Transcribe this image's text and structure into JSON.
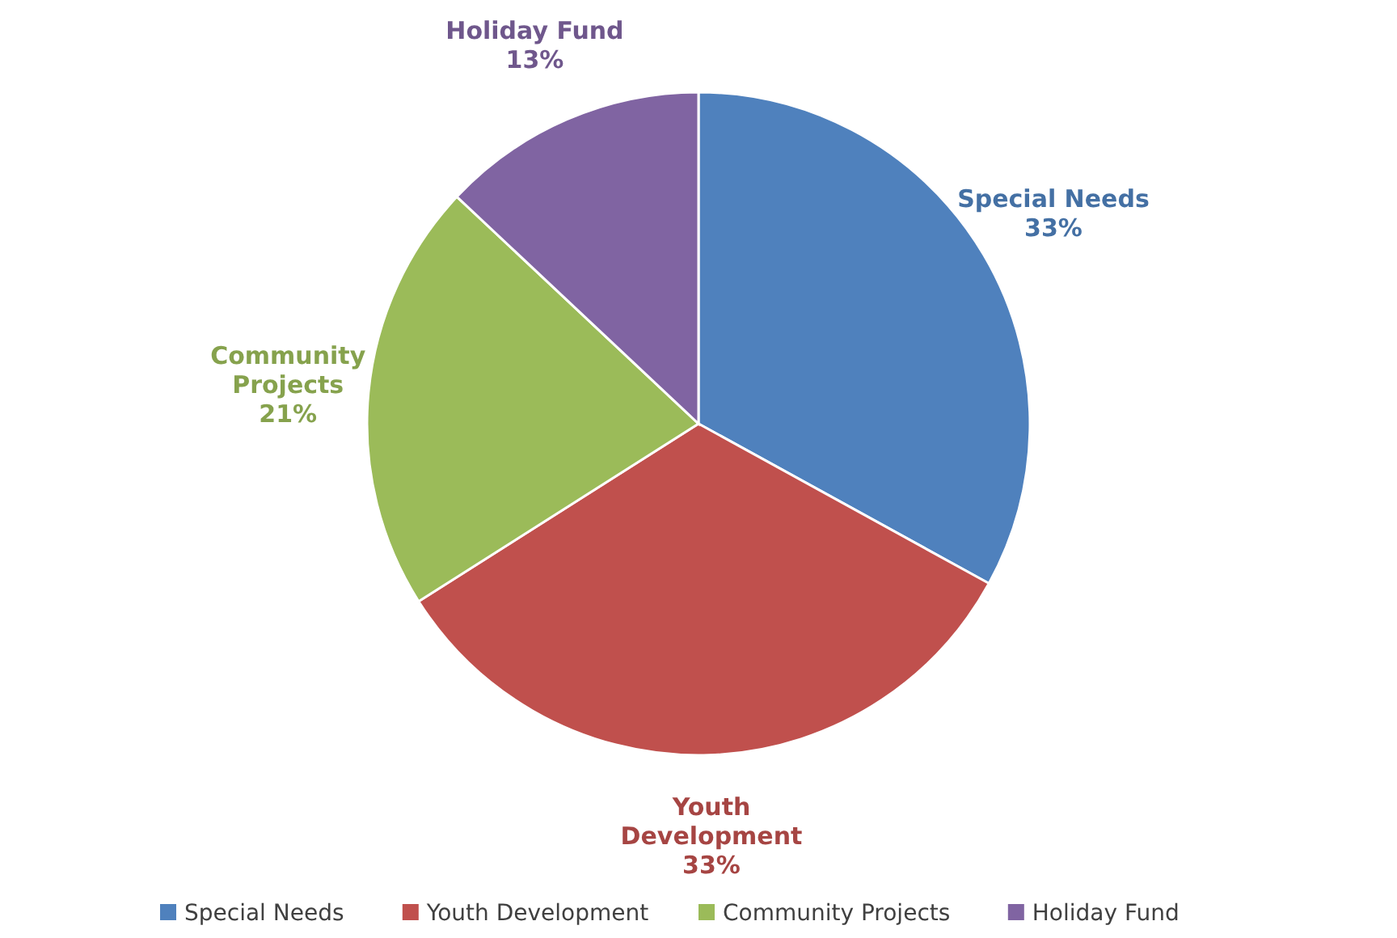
{
  "chart_data": {
    "type": "pie",
    "categories": [
      "Special Needs",
      "Youth Development",
      "Community Projects",
      "Holiday Fund"
    ],
    "values": [
      33,
      33,
      21,
      13
    ],
    "colors": [
      "#4f81bd",
      "#c0504d",
      "#9bbb59",
      "#8064a2"
    ],
    "value_labels": [
      "33%",
      "33%",
      "21%",
      "13%"
    ],
    "legend": "bottom"
  }
}
